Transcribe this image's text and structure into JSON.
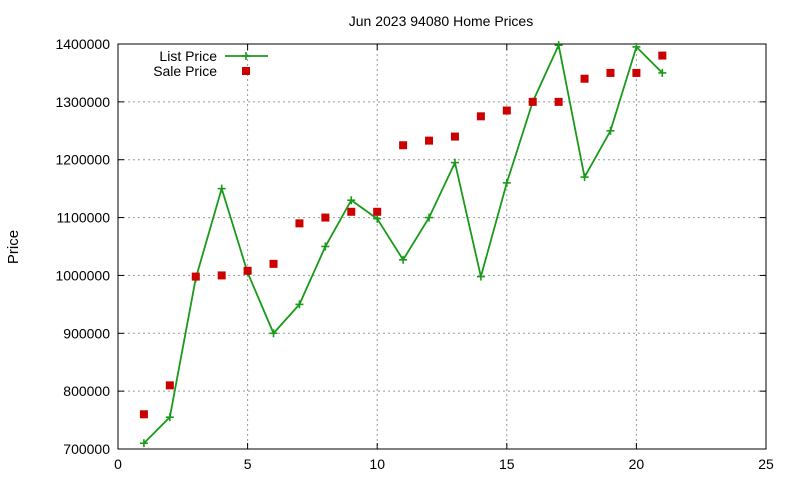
{
  "chart_data": {
    "type": "line",
    "title": "Jun 2023 94080 Home Prices",
    "xlabel": "",
    "ylabel": "Price",
    "xlim": [
      0,
      25
    ],
    "ylim": [
      700000,
      1400000
    ],
    "x_ticks": [
      0,
      5,
      10,
      15,
      20,
      25
    ],
    "y_ticks": [
      700000,
      800000,
      900000,
      1000000,
      1100000,
      1200000,
      1300000,
      1400000
    ],
    "grid": true,
    "legend_position": "top-left",
    "series": [
      {
        "name": "List Price",
        "style": "line-plus",
        "color": "#1a9a1a",
        "x": [
          1,
          2,
          3,
          4,
          5,
          6,
          7,
          8,
          9,
          10,
          11,
          12,
          13,
          14,
          15,
          16,
          17,
          18,
          19,
          20,
          21
        ],
        "values": [
          710000,
          755000,
          995000,
          1150000,
          1005000,
          900000,
          950000,
          1050000,
          1130000,
          1098000,
          1027000,
          1100000,
          1195000,
          998000,
          1160000,
          1300000,
          1398000,
          1170000,
          1250000,
          1395000,
          1350000
        ]
      },
      {
        "name": "Sale Price",
        "style": "square",
        "color": "#cc0000",
        "x": [
          1,
          2,
          3,
          4,
          5,
          6,
          7,
          8,
          9,
          10,
          11,
          12,
          13,
          14,
          15,
          16,
          17,
          18,
          19,
          20,
          21
        ],
        "values": [
          760000,
          810000,
          998000,
          1000000,
          1008000,
          1020000,
          1090000,
          1100000,
          1110000,
          1110000,
          1225000,
          1233000,
          1240000,
          1275000,
          1285000,
          1300000,
          1300000,
          1340000,
          1350000,
          1350000,
          1380000
        ]
      }
    ]
  }
}
